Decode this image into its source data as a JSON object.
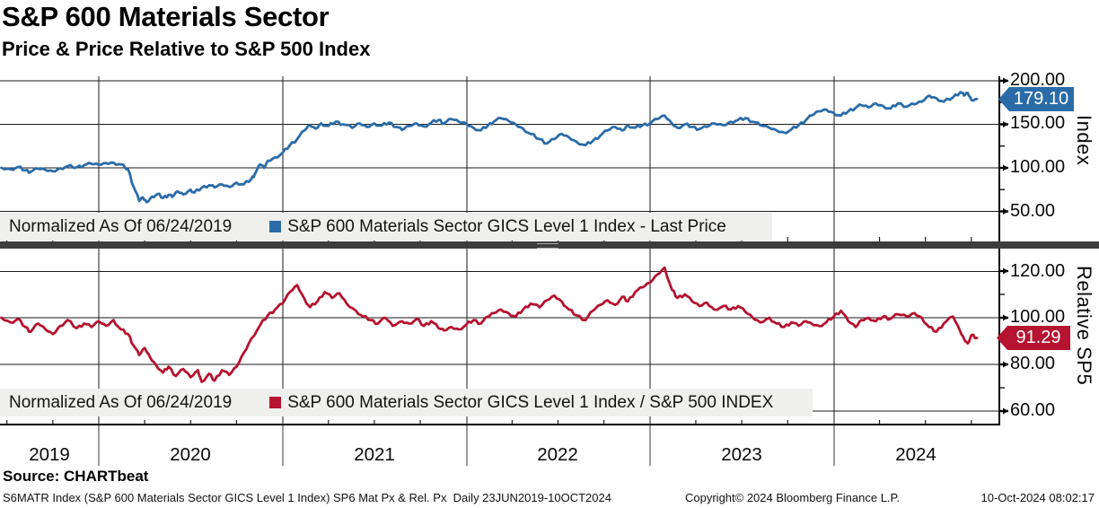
{
  "header": {
    "title": "S&P 600 Materials Sector",
    "subtitle": "Price & Price Relative to S&P 500 Index"
  },
  "top_panel": {
    "axis_title": "Index",
    "yticks": [
      "200.00",
      "150.00",
      "100.00",
      "50.00"
    ],
    "legend_normalized": "Normalized As Of 06/24/2019",
    "legend_label": "S&P 600 Materials Sector GICS Level 1 Index - Last Price",
    "last_price_tag": "179.10",
    "line_color": "#2b6ca8"
  },
  "bottom_panel": {
    "axis_title": "Relative SP5",
    "yticks": [
      "120.00",
      "100.00",
      "80.00",
      "60.00"
    ],
    "legend_normalized": "Normalized As Of 06/24/2019",
    "legend_label": "S&P 600 Materials Sector GICS Level 1 Index / S&P 500 INDEX",
    "last_price_tag": "91.29",
    "line_color": "#b5132f"
  },
  "xaxis": {
    "labels": [
      "2019",
      "2020",
      "2021",
      "2022",
      "2023",
      "2024"
    ]
  },
  "source_line": "Source: CHARTbeat",
  "footer": {
    "left": "S6MATR Index (S&P 600 Materials Sector GICS Level 1 Index) SP6 Mat Px & Rel. Px  Daily 23JUN2019-10OCT2024",
    "center": "Copyright© 2024 Bloomberg Finance L.P.",
    "right": "10-Oct-2024 08:02:17"
  },
  "chart_data": [
    {
      "type": "line",
      "panel": "top",
      "title": "S&P 600 Materials Sector GICS Level 1 Index - Last Price",
      "ylabel": "Index",
      "normalized_as_of": "06/24/2019",
      "last_value": 179.1,
      "color": "#2b6ca8",
      "x_unit": "decimal_year",
      "xlim": [
        2019.47,
        2024.78
      ],
      "ylim": [
        40,
        210
      ],
      "yticks": [
        200,
        150,
        100,
        50
      ],
      "yticks_minor": [
        175,
        125,
        75
      ],
      "points": [
        [
          2019.47,
          100
        ],
        [
          2019.52,
          98.5
        ],
        [
          2019.56,
          101
        ],
        [
          2019.6,
          97
        ],
        [
          2019.63,
          95.5
        ],
        [
          2019.67,
          99
        ],
        [
          2019.71,
          97.5
        ],
        [
          2019.75,
          96
        ],
        [
          2019.79,
          99.5
        ],
        [
          2019.83,
          102
        ],
        [
          2019.88,
          100.5
        ],
        [
          2019.92,
          103
        ],
        [
          2019.96,
          104.5
        ],
        [
          2020,
          103.5
        ],
        [
          2020.04,
          105.5
        ],
        [
          2020.08,
          106
        ],
        [
          2020.12,
          104
        ],
        [
          2020.16,
          98
        ],
        [
          2020.19,
          78
        ],
        [
          2020.22,
          62
        ],
        [
          2020.24,
          66
        ],
        [
          2020.26,
          60.5
        ],
        [
          2020.29,
          67
        ],
        [
          2020.32,
          70
        ],
        [
          2020.35,
          65.5
        ],
        [
          2020.38,
          69
        ],
        [
          2020.4,
          66.5
        ],
        [
          2020.43,
          73
        ],
        [
          2020.46,
          69.5
        ],
        [
          2020.5,
          75
        ],
        [
          2020.52,
          71.5
        ],
        [
          2020.56,
          77
        ],
        [
          2020.6,
          80
        ],
        [
          2020.63,
          77.5
        ],
        [
          2020.67,
          81
        ],
        [
          2020.71,
          78
        ],
        [
          2020.75,
          83
        ],
        [
          2020.79,
          81
        ],
        [
          2020.83,
          87
        ],
        [
          2020.85,
          93
        ],
        [
          2020.88,
          104
        ],
        [
          2020.9,
          100
        ],
        [
          2020.92,
          108
        ],
        [
          2020.96,
          112
        ],
        [
          2021,
          117
        ],
        [
          2021.04,
          126
        ],
        [
          2021.08,
          133
        ],
        [
          2021.12,
          143
        ],
        [
          2021.15,
          149
        ],
        [
          2021.18,
          145
        ],
        [
          2021.21,
          151
        ],
        [
          2021.25,
          148
        ],
        [
          2021.29,
          153
        ],
        [
          2021.33,
          150
        ],
        [
          2021.38,
          146
        ],
        [
          2021.42,
          151
        ],
        [
          2021.46,
          147
        ],
        [
          2021.5,
          151
        ],
        [
          2021.54,
          148.5
        ],
        [
          2021.58,
          152
        ],
        [
          2021.62,
          147
        ],
        [
          2021.65,
          143.5
        ],
        [
          2021.69,
          148
        ],
        [
          2021.73,
          151
        ],
        [
          2021.77,
          147.5
        ],
        [
          2021.81,
          152
        ],
        [
          2021.85,
          155
        ],
        [
          2021.88,
          151
        ],
        [
          2021.92,
          156
        ],
        [
          2021.96,
          153
        ],
        [
          2022,
          151
        ],
        [
          2022.04,
          146
        ],
        [
          2022.08,
          143
        ],
        [
          2022.12,
          149
        ],
        [
          2022.15,
          153
        ],
        [
          2022.19,
          157
        ],
        [
          2022.23,
          154
        ],
        [
          2022.27,
          150
        ],
        [
          2022.31,
          145
        ],
        [
          2022.35,
          139
        ],
        [
          2022.4,
          133
        ],
        [
          2022.44,
          128
        ],
        [
          2022.48,
          133
        ],
        [
          2022.52,
          139
        ],
        [
          2022.56,
          135
        ],
        [
          2022.6,
          130
        ],
        [
          2022.65,
          126
        ],
        [
          2022.69,
          131
        ],
        [
          2022.73,
          137
        ],
        [
          2022.77,
          143
        ],
        [
          2022.81,
          147
        ],
        [
          2022.85,
          143
        ],
        [
          2022.88,
          149
        ],
        [
          2022.92,
          146
        ],
        [
          2022.96,
          149
        ],
        [
          2023,
          151
        ],
        [
          2023.04,
          156
        ],
        [
          2023.08,
          160
        ],
        [
          2023.12,
          151
        ],
        [
          2023.15,
          146
        ],
        [
          2023.19,
          150
        ],
        [
          2023.23,
          147
        ],
        [
          2023.27,
          144.5
        ],
        [
          2023.31,
          147
        ],
        [
          2023.35,
          151
        ],
        [
          2023.4,
          149
        ],
        [
          2023.44,
          153
        ],
        [
          2023.48,
          155
        ],
        [
          2023.52,
          157
        ],
        [
          2023.56,
          153
        ],
        [
          2023.6,
          149
        ],
        [
          2023.65,
          146
        ],
        [
          2023.69,
          143
        ],
        [
          2023.73,
          140.5
        ],
        [
          2023.77,
          144
        ],
        [
          2023.81,
          149
        ],
        [
          2023.85,
          155
        ],
        [
          2023.88,
          160
        ],
        [
          2023.92,
          165
        ],
        [
          2023.96,
          167
        ],
        [
          2024,
          163
        ],
        [
          2024.04,
          160
        ],
        [
          2024.08,
          165
        ],
        [
          2024.12,
          169
        ],
        [
          2024.15,
          172
        ],
        [
          2024.19,
          169.5
        ],
        [
          2024.23,
          174
        ],
        [
          2024.27,
          171
        ],
        [
          2024.31,
          168
        ],
        [
          2024.35,
          174
        ],
        [
          2024.4,
          170.5
        ],
        [
          2024.44,
          173
        ],
        [
          2024.48,
          176
        ],
        [
          2024.52,
          183
        ],
        [
          2024.56,
          180
        ],
        [
          2024.6,
          176
        ],
        [
          2024.65,
          181
        ],
        [
          2024.69,
          187
        ],
        [
          2024.71,
          183
        ],
        [
          2024.73,
          186
        ],
        [
          2024.75,
          178
        ],
        [
          2024.78,
          179.1
        ]
      ]
    },
    {
      "type": "line",
      "panel": "bottom",
      "title": "S&P 600 Materials Sector GICS Level 1 Index / S&P 500 INDEX",
      "ylabel": "Relative SP5",
      "normalized_as_of": "06/24/2019",
      "last_value": 91.29,
      "color": "#b5132f",
      "x_unit": "decimal_year",
      "xlim": [
        2019.47,
        2024.78
      ],
      "ylim": [
        55,
        128
      ],
      "yticks": [
        120,
        100,
        80,
        60
      ],
      "yticks_minor": [
        110,
        90,
        70
      ],
      "points": [
        [
          2019.47,
          100
        ],
        [
          2019.52,
          98
        ],
        [
          2019.56,
          99.5
        ],
        [
          2019.6,
          96
        ],
        [
          2019.63,
          94
        ],
        [
          2019.67,
          97.5
        ],
        [
          2019.71,
          95
        ],
        [
          2019.75,
          93
        ],
        [
          2019.79,
          96.5
        ],
        [
          2019.83,
          99
        ],
        [
          2019.88,
          95.5
        ],
        [
          2019.92,
          97.5
        ],
        [
          2019.96,
          96
        ],
        [
          2020,
          98.5
        ],
        [
          2020.04,
          96.5
        ],
        [
          2020.08,
          99
        ],
        [
          2020.12,
          95
        ],
        [
          2020.16,
          93
        ],
        [
          2020.19,
          88
        ],
        [
          2020.22,
          84
        ],
        [
          2020.25,
          87
        ],
        [
          2020.28,
          83
        ],
        [
          2020.31,
          80
        ],
        [
          2020.35,
          76.5
        ],
        [
          2020.38,
          79
        ],
        [
          2020.42,
          75
        ],
        [
          2020.46,
          78
        ],
        [
          2020.5,
          74.5
        ],
        [
          2020.54,
          77.5
        ],
        [
          2020.56,
          72.5
        ],
        [
          2020.6,
          76
        ],
        [
          2020.63,
          73
        ],
        [
          2020.67,
          77.5
        ],
        [
          2020.71,
          75.5
        ],
        [
          2020.75,
          79
        ],
        [
          2020.79,
          85
        ],
        [
          2020.83,
          91
        ],
        [
          2020.88,
          97
        ],
        [
          2020.92,
          101
        ],
        [
          2020.96,
          103.5
        ],
        [
          2021,
          106
        ],
        [
          2021.04,
          111
        ],
        [
          2021.08,
          114
        ],
        [
          2021.12,
          108
        ],
        [
          2021.15,
          104.5
        ],
        [
          2021.19,
          107
        ],
        [
          2021.23,
          111
        ],
        [
          2021.27,
          108.5
        ],
        [
          2021.31,
          110.5
        ],
        [
          2021.35,
          106
        ],
        [
          2021.4,
          103
        ],
        [
          2021.44,
          100.5
        ],
        [
          2021.48,
          99
        ],
        [
          2021.52,
          97.5
        ],
        [
          2021.56,
          100
        ],
        [
          2021.6,
          96.5
        ],
        [
          2021.65,
          98.5
        ],
        [
          2021.69,
          97.5
        ],
        [
          2021.73,
          99.5
        ],
        [
          2021.77,
          96.5
        ],
        [
          2021.81,
          98.5
        ],
        [
          2021.85,
          95.5
        ],
        [
          2021.88,
          94.5
        ],
        [
          2021.92,
          96
        ],
        [
          2021.96,
          95
        ],
        [
          2022,
          97
        ],
        [
          2022.04,
          99
        ],
        [
          2022.08,
          97.5
        ],
        [
          2022.12,
          100.5
        ],
        [
          2022.15,
          102
        ],
        [
          2022.19,
          103.5
        ],
        [
          2022.23,
          102
        ],
        [
          2022.27,
          100.5
        ],
        [
          2022.31,
          103.5
        ],
        [
          2022.35,
          106
        ],
        [
          2022.4,
          104.5
        ],
        [
          2022.44,
          107.5
        ],
        [
          2022.48,
          109.5
        ],
        [
          2022.52,
          107
        ],
        [
          2022.56,
          103.5
        ],
        [
          2022.6,
          101
        ],
        [
          2022.65,
          99
        ],
        [
          2022.69,
          103
        ],
        [
          2022.73,
          105.5
        ],
        [
          2022.77,
          107.5
        ],
        [
          2022.81,
          105.5
        ],
        [
          2022.85,
          109
        ],
        [
          2022.88,
          107
        ],
        [
          2022.92,
          111
        ],
        [
          2022.96,
          113
        ],
        [
          2023,
          115
        ],
        [
          2023.04,
          118.5
        ],
        [
          2023.08,
          121.5
        ],
        [
          2023.12,
          112
        ],
        [
          2023.15,
          108.5
        ],
        [
          2023.19,
          110
        ],
        [
          2023.23,
          107
        ],
        [
          2023.27,
          105
        ],
        [
          2023.31,
          106.5
        ],
        [
          2023.35,
          103.5
        ],
        [
          2023.4,
          105
        ],
        [
          2023.44,
          103.5
        ],
        [
          2023.48,
          105
        ],
        [
          2023.52,
          102.5
        ],
        [
          2023.56,
          100
        ],
        [
          2023.6,
          98
        ],
        [
          2023.65,
          100
        ],
        [
          2023.69,
          97.5
        ],
        [
          2023.73,
          96
        ],
        [
          2023.77,
          98
        ],
        [
          2023.81,
          96.5
        ],
        [
          2023.85,
          98.5
        ],
        [
          2023.88,
          97.5
        ],
        [
          2023.92,
          96.5
        ],
        [
          2023.96,
          98
        ],
        [
          2024,
          100.5
        ],
        [
          2024.04,
          103
        ],
        [
          2024.08,
          98.5
        ],
        [
          2024.12,
          96
        ],
        [
          2024.15,
          99
        ],
        [
          2024.19,
          100
        ],
        [
          2024.23,
          98.5
        ],
        [
          2024.27,
          100.5
        ],
        [
          2024.31,
          99.5
        ],
        [
          2024.35,
          101.5
        ],
        [
          2024.4,
          100.5
        ],
        [
          2024.44,
          102
        ],
        [
          2024.48,
          100
        ],
        [
          2024.52,
          96
        ],
        [
          2024.56,
          94
        ],
        [
          2024.6,
          97.5
        ],
        [
          2024.65,
          100.5
        ],
        [
          2024.69,
          94
        ],
        [
          2024.71,
          91
        ],
        [
          2024.73,
          89
        ],
        [
          2024.75,
          92.5
        ],
        [
          2024.78,
          91.29
        ]
      ]
    }
  ]
}
